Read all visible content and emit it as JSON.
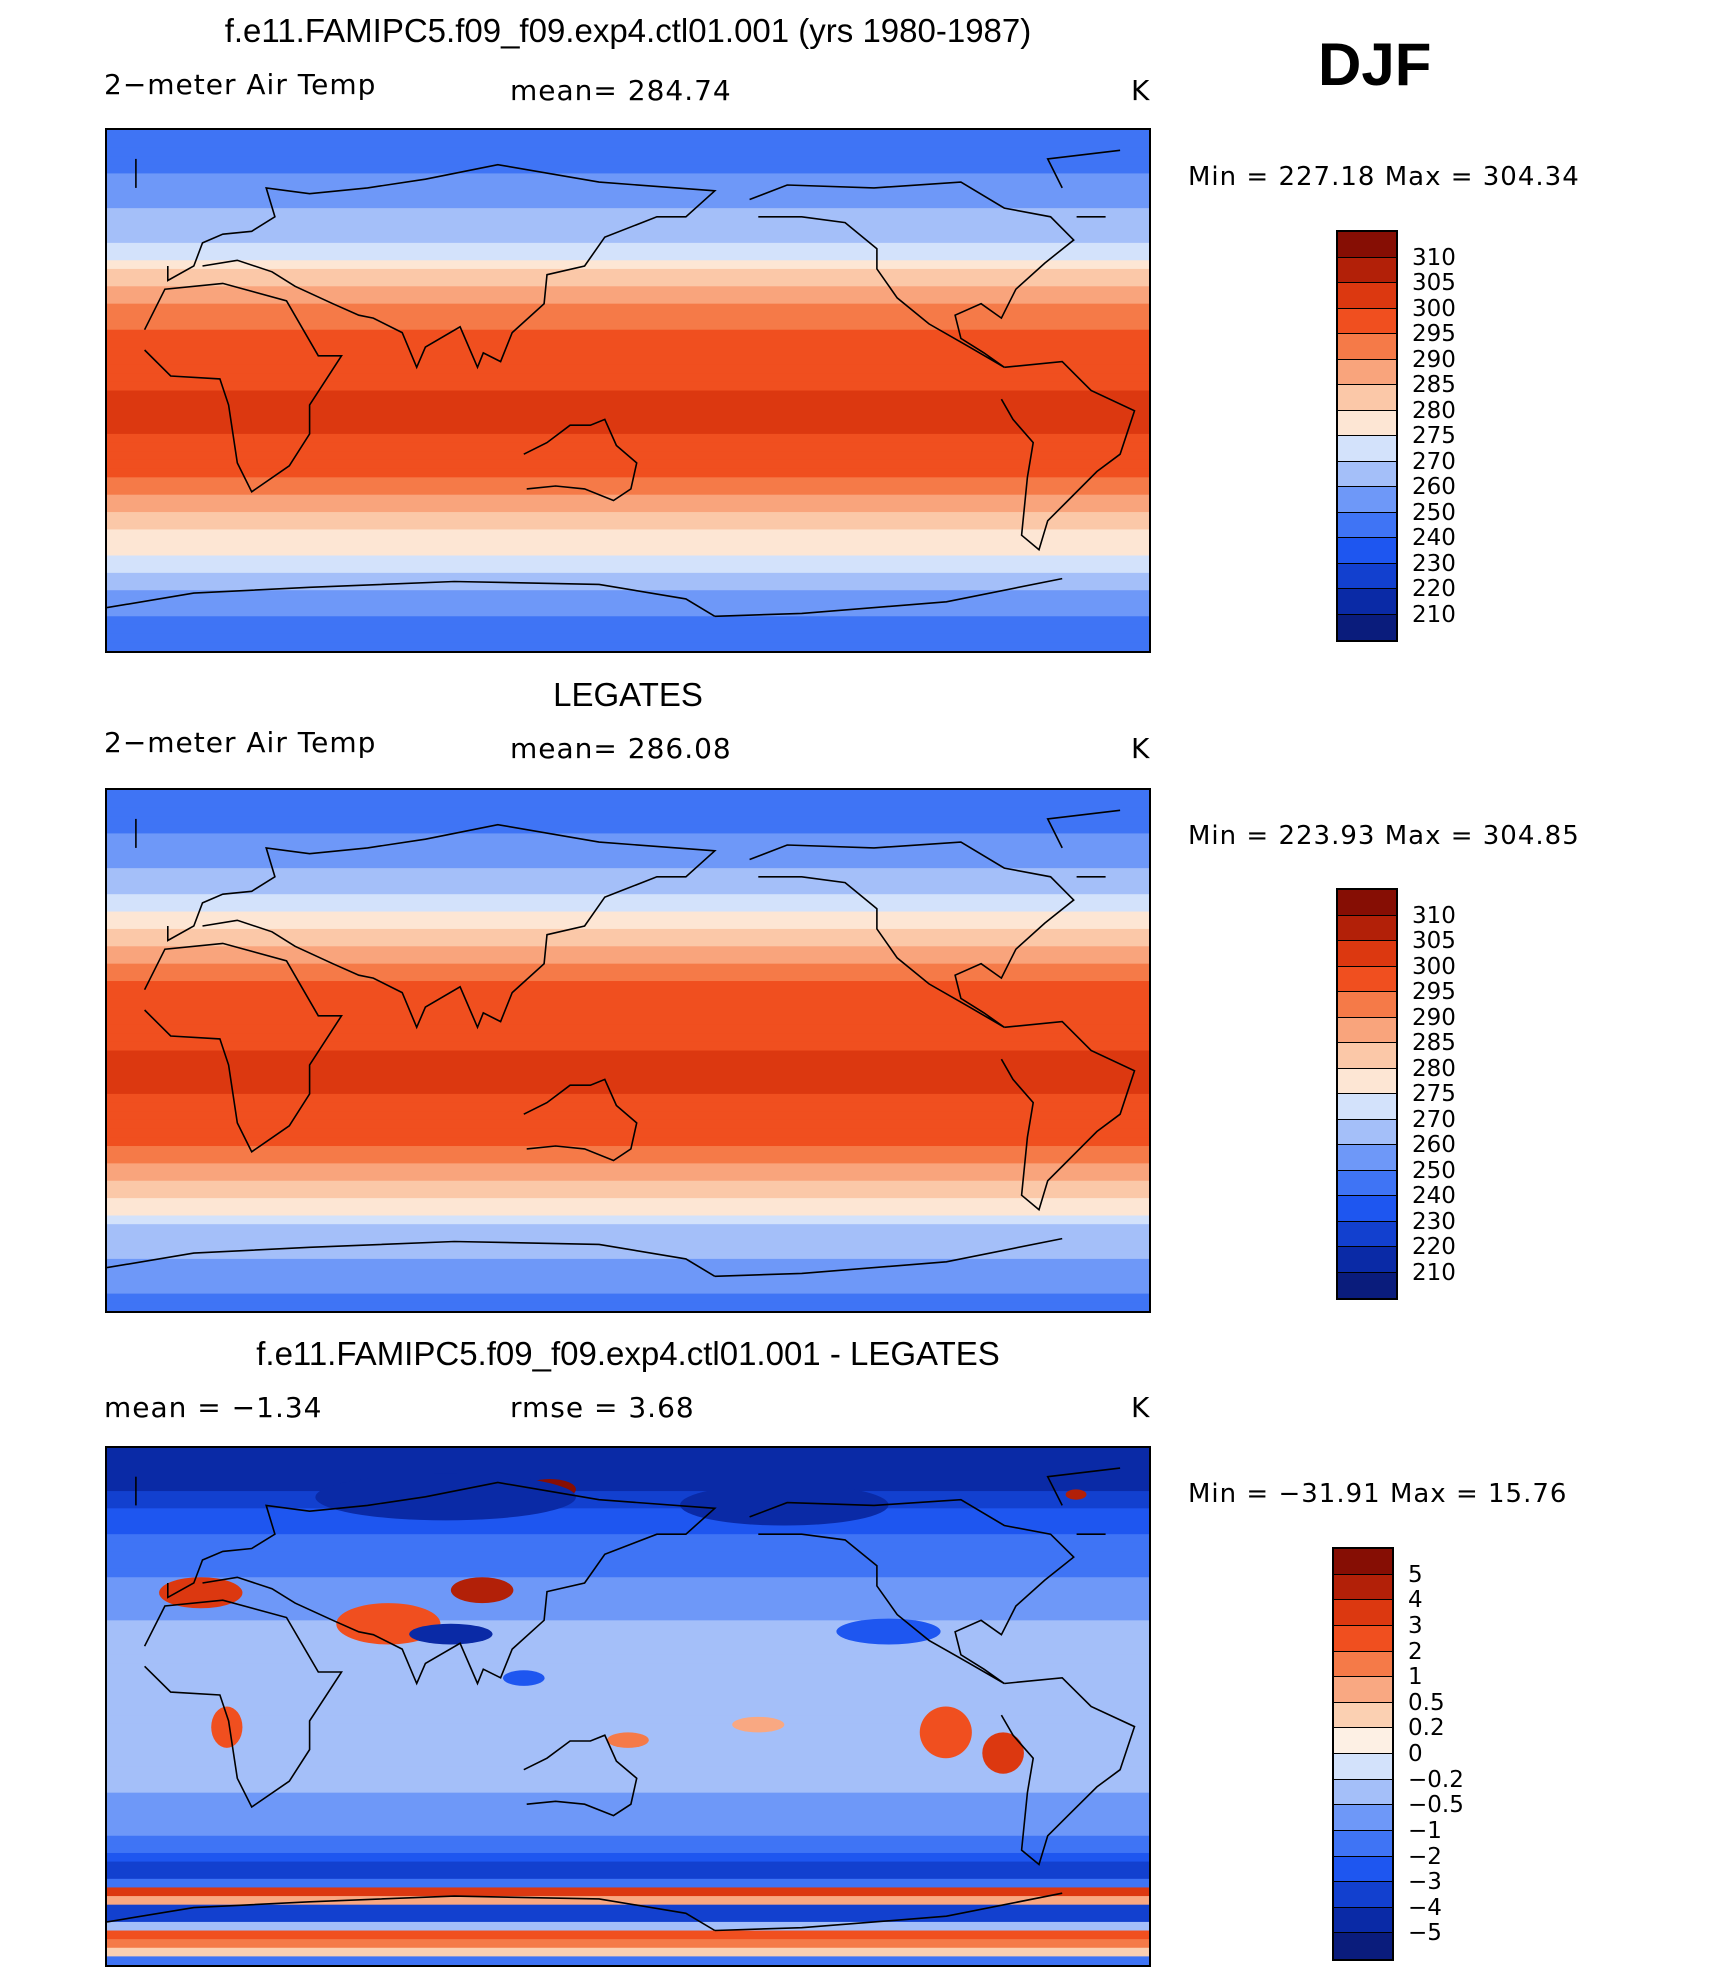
{
  "figure": {
    "season": "DJF",
    "colors": {
      "temp_scale": [
        "#0a1c7c",
        "#0a2aa6",
        "#1240cf",
        "#1e56f0",
        "#3f74f5",
        "#6e98f8",
        "#a4bff9",
        "#d3e2fb",
        "#fde6d4",
        "#fbc8a8",
        "#f9a47c",
        "#f57a48",
        "#f04f1f",
        "#dc3810",
        "#b22008",
        "#860e04"
      ],
      "diff_scale": [
        "#0a1c7c",
        "#0a2aa6",
        "#1240cf",
        "#1e56f0",
        "#3f74f5",
        "#6e98f8",
        "#a4bff9",
        "#d3e2fb",
        "#fdf0e4",
        "#fbd0b2",
        "#f9a882",
        "#f57a48",
        "#f04f1f",
        "#dc3810",
        "#b22008",
        "#860e04"
      ]
    }
  },
  "chart_data": [
    {
      "type": "heatmap",
      "panel": "model",
      "title": "f.e11.FAMIPC5.f09_f09.exp4.ctl01.001 (yrs 1980-1987)",
      "left_label": "2−meter Air Temp",
      "center_label": "mean=  284.74",
      "mean": 284.74,
      "units": "K",
      "min": 227.18,
      "max": 304.34,
      "min_label": "Min  =  227.18",
      "max_label": "Max  =  304.34",
      "levels": [
        "310",
        "305",
        "300",
        "295",
        "290",
        "285",
        "280",
        "275",
        "270",
        "260",
        "250",
        "240",
        "230",
        "220",
        "210"
      ],
      "level_values": [
        310,
        305,
        300,
        295,
        290,
        285,
        280,
        275,
        270,
        260,
        250,
        240,
        230,
        220,
        210
      ],
      "zonal_profile": [
        {
          "lat": 90,
          "value": 245
        },
        {
          "lat": 75,
          "value": 250
        },
        {
          "lat": 60,
          "value": 262
        },
        {
          "lat": 45,
          "value": 276
        },
        {
          "lat": 30,
          "value": 290
        },
        {
          "lat": 15,
          "value": 299
        },
        {
          "lat": 0,
          "value": 300
        },
        {
          "lat": -15,
          "value": 300
        },
        {
          "lat": -30,
          "value": 295
        },
        {
          "lat": -45,
          "value": 283
        },
        {
          "lat": -60,
          "value": 272
        },
        {
          "lat": -75,
          "value": 252
        },
        {
          "lat": -90,
          "value": 240
        }
      ]
    },
    {
      "type": "heatmap",
      "panel": "observations",
      "title": "LEGATES",
      "left_label": "2−meter Air Temp",
      "center_label": "mean=  286.08",
      "mean": 286.08,
      "units": "K",
      "min": 223.93,
      "max": 304.85,
      "min_label": "Min  =  223.93",
      "max_label": "Max  =  304.85",
      "levels": [
        "310",
        "305",
        "300",
        "295",
        "290",
        "285",
        "280",
        "275",
        "270",
        "260",
        "250",
        "240",
        "230",
        "220",
        "210"
      ],
      "level_values": [
        310,
        305,
        300,
        295,
        290,
        285,
        280,
        275,
        270,
        260,
        250,
        240,
        230,
        220,
        210
      ],
      "zonal_profile": [
        {
          "lat": 90,
          "value": 243
        },
        {
          "lat": 75,
          "value": 250
        },
        {
          "lat": 60,
          "value": 263
        },
        {
          "lat": 45,
          "value": 278
        },
        {
          "lat": 30,
          "value": 291
        },
        {
          "lat": 15,
          "value": 299
        },
        {
          "lat": 0,
          "value": 300
        },
        {
          "lat": -15,
          "value": 300
        },
        {
          "lat": -30,
          "value": 296
        },
        {
          "lat": -45,
          "value": 286
        },
        {
          "lat": -60,
          "value": 271
        },
        {
          "lat": -75,
          "value": 258
        },
        {
          "lat": -90,
          "value": 245
        }
      ]
    },
    {
      "type": "heatmap",
      "panel": "difference",
      "title": "f.e11.FAMIPC5.f09_f09.exp4.ctl01.001 - LEGATES",
      "left_label": "mean  =    −1.34",
      "center_label": "rmse  =     3.68",
      "mean": -1.34,
      "rmse": 3.68,
      "units": "K",
      "min": -31.91,
      "max": 15.76,
      "min_label": "Min  =  −31.91",
      "max_label": "Max  =    15.76",
      "levels": [
        "5",
        "4",
        "3",
        "2",
        "1",
        "0.5",
        "0.2",
        "0",
        "−0.2",
        "−0.5",
        "−1",
        "−2",
        "−3",
        "−4",
        "−5"
      ],
      "level_values": [
        5,
        4,
        3,
        2,
        1,
        0.5,
        0.2,
        0,
        -0.2,
        -0.5,
        -1,
        -2,
        -3,
        -4,
        -5
      ],
      "zonal_profile": [
        {
          "lat": 90,
          "value": -5
        },
        {
          "lat": 75,
          "value": -4
        },
        {
          "lat": 60,
          "value": -2
        },
        {
          "lat": 45,
          "value": -1
        },
        {
          "lat": 30,
          "value": -0.5
        },
        {
          "lat": 15,
          "value": -0.5
        },
        {
          "lat": 0,
          "value": -0.5
        },
        {
          "lat": -15,
          "value": -0.2
        },
        {
          "lat": -30,
          "value": -0.5
        },
        {
          "lat": -45,
          "value": -1
        },
        {
          "lat": -60,
          "value": -4
        },
        {
          "lat": -65,
          "value": 4
        },
        {
          "lat": -72,
          "value": -5
        },
        {
          "lat": -80,
          "value": 3
        },
        {
          "lat": -90,
          "value": -2
        }
      ]
    }
  ]
}
